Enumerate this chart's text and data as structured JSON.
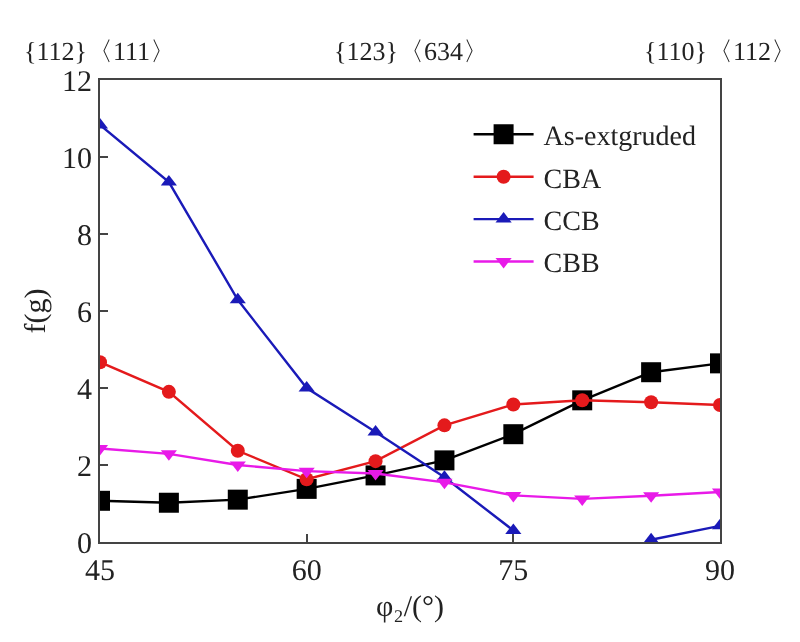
{
  "chart_data": {
    "type": "line",
    "xlabel": "φ₂/(°)",
    "ylabel": "f(g)",
    "x": [
      45,
      50,
      55,
      60,
      65,
      70,
      75,
      80,
      85,
      90
    ],
    "xlim": [
      45,
      90
    ],
    "xticks": [
      45,
      60,
      75,
      90
    ],
    "ylim": [
      0,
      12
    ],
    "yticks": [
      0,
      2,
      4,
      6,
      8,
      10,
      12
    ],
    "annotations": [
      "{112}〈111〉",
      "{123}〈634〉",
      "{110}〈112〉"
    ],
    "legend": "top right",
    "line_style": "solid",
    "series": [
      {
        "name": "As-extgruded",
        "color": "#000000",
        "marker": "square",
        "values": [
          1.07,
          1.02,
          1.1,
          1.38,
          1.73,
          2.12,
          2.8,
          3.68,
          4.41,
          4.64
        ]
      },
      {
        "name": "CBA",
        "color": "#e41a1c",
        "marker": "circle",
        "values": [
          4.67,
          3.9,
          2.37,
          1.63,
          2.1,
          3.03,
          3.57,
          3.68,
          3.63,
          3.56
        ]
      },
      {
        "name": "CCB",
        "color": "#1a1ab8",
        "marker": "triangle",
        "values": [
          10.83,
          9.35,
          6.29,
          4.0,
          2.86,
          1.68,
          0.3,
          null,
          0.06,
          0.42
        ]
      },
      {
        "name": "CBB",
        "color": "#e81ae8",
        "marker": "triangle-down",
        "values": [
          2.43,
          2.29,
          2.0,
          1.84,
          1.78,
          1.55,
          1.21,
          1.12,
          1.2,
          1.3
        ]
      }
    ]
  }
}
